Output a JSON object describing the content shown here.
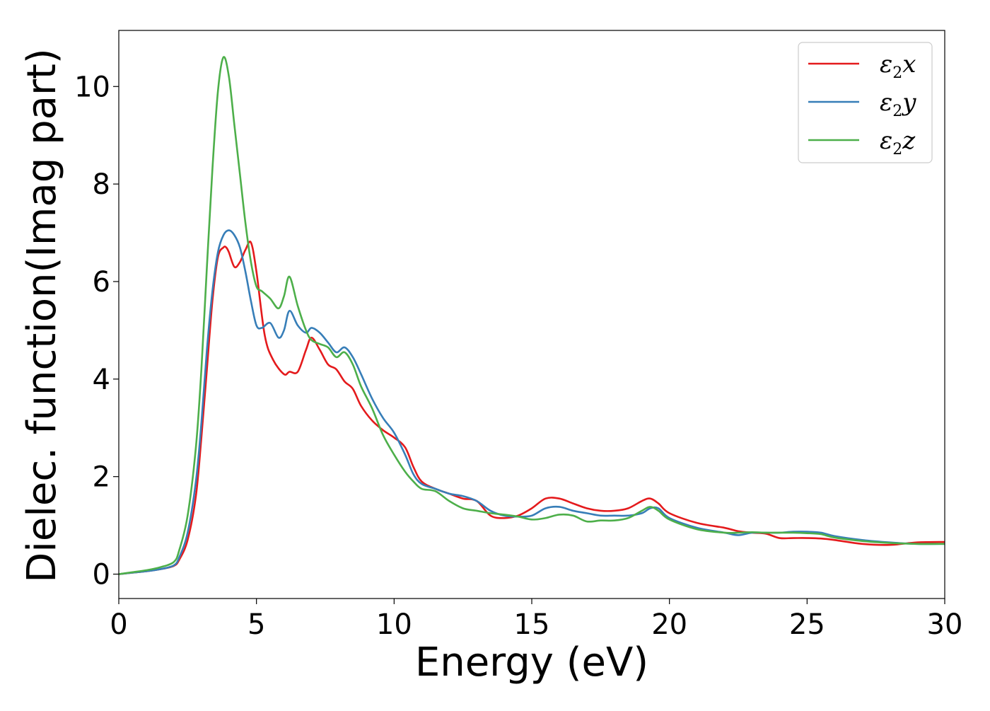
{
  "chart_data": {
    "type": "line",
    "title": "",
    "xlabel": "Energy (eV)",
    "ylabel": "Dielec. function(Imag part)",
    "xlim": [
      0,
      30
    ],
    "ylim": [
      -0.5,
      11.15
    ],
    "xticks": [
      0,
      5,
      10,
      15,
      20,
      25,
      30
    ],
    "yticks": [
      0,
      2,
      4,
      6,
      8,
      10
    ],
    "grid": false,
    "legend_position": "top-right",
    "series": [
      {
        "name": "ε2x",
        "legend_main": "ε",
        "legend_sub": "2",
        "legend_var": "x",
        "color": "#e41a1c",
        "x": [
          0,
          0.5,
          1,
          1.5,
          2,
          2.2,
          2.5,
          2.8,
          3.0,
          3.2,
          3.4,
          3.6,
          3.8,
          3.9,
          4.0,
          4.2,
          4.4,
          4.6,
          4.8,
          5.0,
          5.3,
          5.6,
          6.0,
          6.2,
          6.5,
          6.8,
          7.0,
          7.3,
          7.6,
          7.9,
          8.2,
          8.5,
          8.8,
          9.2,
          9.6,
          10.0,
          10.4,
          10.7,
          11.0,
          11.5,
          12.0,
          12.5,
          13.0,
          13.5,
          14.0,
          14.5,
          15.0,
          15.5,
          16.0,
          16.5,
          17.0,
          17.5,
          18.0,
          18.5,
          19.0,
          19.3,
          19.6,
          20.0,
          21.0,
          22.0,
          22.5,
          23.0,
          23.5,
          24.0,
          24.5,
          25.0,
          25.5,
          26.0,
          27.0,
          28.0,
          29.0,
          30.0
        ],
        "values": [
          0,
          0.03,
          0.06,
          0.1,
          0.17,
          0.3,
          0.7,
          1.6,
          2.8,
          4.2,
          5.6,
          6.5,
          6.7,
          6.7,
          6.6,
          6.3,
          6.4,
          6.65,
          6.8,
          6.2,
          4.9,
          4.4,
          4.1,
          4.15,
          4.15,
          4.6,
          4.85,
          4.6,
          4.3,
          4.2,
          3.95,
          3.8,
          3.45,
          3.15,
          2.95,
          2.8,
          2.6,
          2.2,
          1.9,
          1.75,
          1.65,
          1.55,
          1.5,
          1.2,
          1.15,
          1.2,
          1.35,
          1.55,
          1.55,
          1.45,
          1.35,
          1.3,
          1.3,
          1.35,
          1.5,
          1.55,
          1.45,
          1.25,
          1.05,
          0.95,
          0.88,
          0.85,
          0.83,
          0.74,
          0.74,
          0.74,
          0.73,
          0.7,
          0.62,
          0.6,
          0.65,
          0.66
        ]
      },
      {
        "name": "ε2y",
        "legend_main": "ε",
        "legend_sub": "2",
        "legend_var": "y",
        "color": "#377eb8",
        "x": [
          0,
          0.5,
          1,
          1.5,
          2,
          2.2,
          2.5,
          2.8,
          3.0,
          3.2,
          3.4,
          3.6,
          3.8,
          4.0,
          4.2,
          4.4,
          4.6,
          4.8,
          5.0,
          5.2,
          5.5,
          5.8,
          6.0,
          6.2,
          6.5,
          6.8,
          7.0,
          7.3,
          7.6,
          7.9,
          8.2,
          8.5,
          8.8,
          9.2,
          9.6,
          10.0,
          10.4,
          10.7,
          11.0,
          11.5,
          12.0,
          12.5,
          13.0,
          13.5,
          14.0,
          14.5,
          15.0,
          15.5,
          16.0,
          16.5,
          17.0,
          17.5,
          18.0,
          18.5,
          19.0,
          19.3,
          19.6,
          20.0,
          21.0,
          22.0,
          22.5,
          23.0,
          23.5,
          24.0,
          24.5,
          25.0,
          25.5,
          26.0,
          27.0,
          28.0,
          29.0,
          30.0
        ],
        "values": [
          0,
          0.03,
          0.06,
          0.1,
          0.18,
          0.35,
          0.85,
          1.9,
          3.1,
          4.6,
          5.8,
          6.6,
          6.95,
          7.05,
          6.95,
          6.7,
          6.2,
          5.6,
          5.1,
          5.05,
          5.15,
          4.85,
          5.0,
          5.4,
          5.1,
          4.95,
          5.05,
          4.95,
          4.75,
          4.55,
          4.65,
          4.45,
          4.1,
          3.6,
          3.2,
          2.9,
          2.45,
          2.05,
          1.85,
          1.75,
          1.65,
          1.6,
          1.5,
          1.3,
          1.2,
          1.18,
          1.2,
          1.35,
          1.38,
          1.3,
          1.25,
          1.2,
          1.2,
          1.2,
          1.25,
          1.35,
          1.35,
          1.15,
          0.95,
          0.85,
          0.8,
          0.85,
          0.85,
          0.85,
          0.87,
          0.87,
          0.85,
          0.78,
          0.7,
          0.65,
          0.62,
          0.62
        ]
      },
      {
        "name": "ε2z",
        "legend_main": "ε",
        "legend_sub": "2",
        "legend_var": "z",
        "color": "#4daf4a",
        "x": [
          0,
          0.5,
          1,
          1.5,
          2,
          2.2,
          2.5,
          2.8,
          3.0,
          3.2,
          3.4,
          3.6,
          3.8,
          4.0,
          4.2,
          4.4,
          4.6,
          4.8,
          5.0,
          5.2,
          5.5,
          5.8,
          6.0,
          6.2,
          6.5,
          6.8,
          7.0,
          7.3,
          7.6,
          7.9,
          8.2,
          8.5,
          8.8,
          9.2,
          9.6,
          10.0,
          10.4,
          10.7,
          11.0,
          11.5,
          12.0,
          12.5,
          13.0,
          13.5,
          14.0,
          14.5,
          15.0,
          15.5,
          16.0,
          16.5,
          17.0,
          17.5,
          18.0,
          18.5,
          19.0,
          19.3,
          19.6,
          20.0,
          21.0,
          22.0,
          22.5,
          23.0,
          23.5,
          24.0,
          24.5,
          25.0,
          25.5,
          26.0,
          27.0,
          28.0,
          29.0,
          30.0
        ],
        "values": [
          0,
          0.04,
          0.08,
          0.14,
          0.25,
          0.5,
          1.2,
          2.6,
          4.2,
          6.3,
          8.3,
          9.9,
          10.6,
          10.2,
          9.2,
          8.2,
          7.2,
          6.4,
          5.9,
          5.8,
          5.65,
          5.45,
          5.7,
          6.1,
          5.5,
          5.0,
          4.8,
          4.72,
          4.65,
          4.45,
          4.55,
          4.3,
          3.85,
          3.4,
          2.85,
          2.45,
          2.1,
          1.9,
          1.75,
          1.7,
          1.5,
          1.35,
          1.3,
          1.25,
          1.22,
          1.18,
          1.12,
          1.15,
          1.22,
          1.2,
          1.08,
          1.1,
          1.1,
          1.15,
          1.3,
          1.38,
          1.3,
          1.12,
          0.92,
          0.85,
          0.85,
          0.86,
          0.85,
          0.85,
          0.85,
          0.84,
          0.82,
          0.75,
          0.68,
          0.64,
          0.62,
          0.62
        ]
      }
    ]
  }
}
